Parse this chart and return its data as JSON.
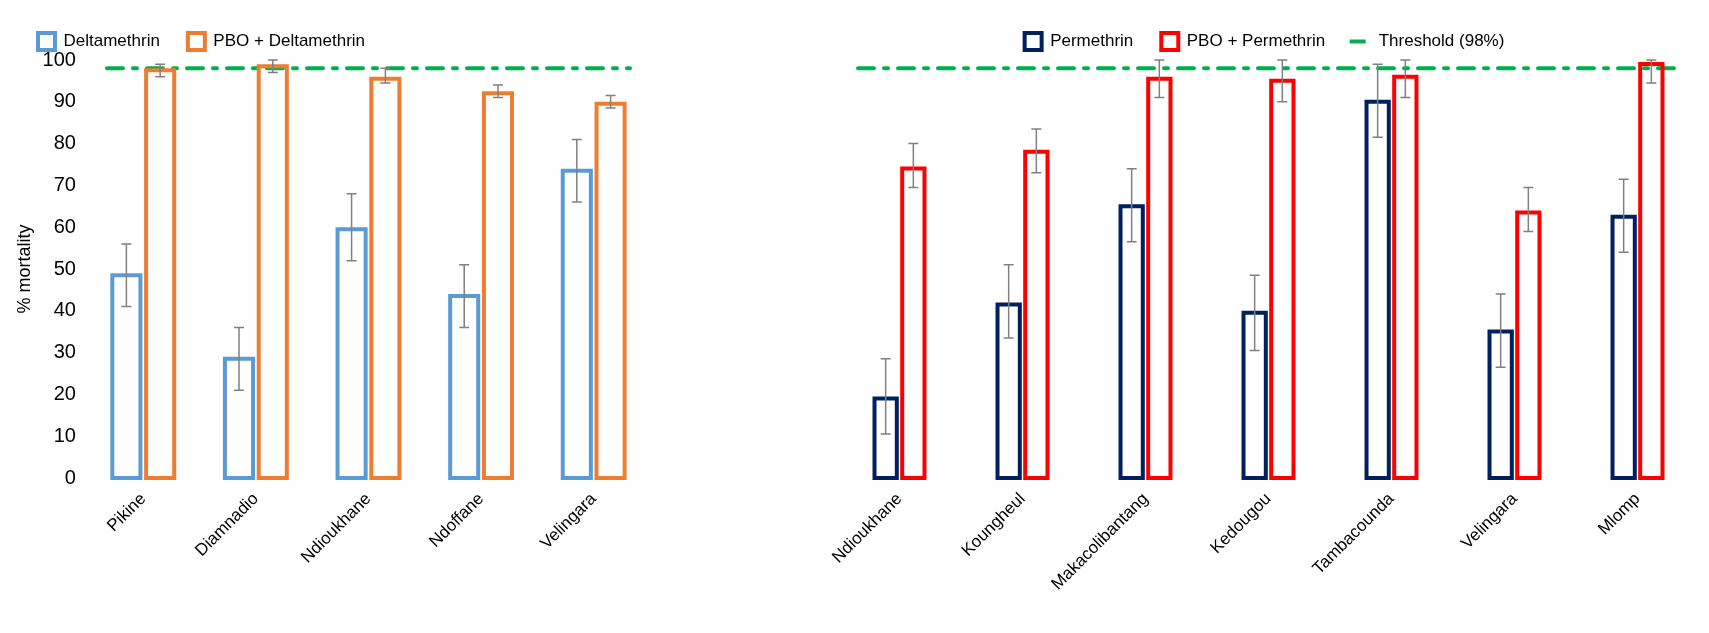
{
  "chart_data": [
    {
      "type": "bar",
      "ylabel": "% mortality",
      "categories": [
        "Pikine",
        "Diamnadio",
        "Ndioukhane",
        "Ndoffane",
        "Velingara"
      ],
      "series": [
        {
          "name": "Deltamethrin",
          "color": "#5b9bd5",
          "values": [
            49,
            29,
            60,
            44,
            74
          ],
          "errors": [
            [
              41,
              56
            ],
            [
              21,
              36
            ],
            [
              52,
              68
            ],
            [
              36,
              51
            ],
            [
              66,
              81
            ]
          ]
        },
        {
          "name": "PBO + Deltamethrin",
          "color": "#ed7d31",
          "values": [
            98,
            99,
            96,
            92.5,
            90
          ],
          "errors": [
            [
              96,
              99
            ],
            [
              97,
              100
            ],
            [
              94.5,
              98
            ],
            [
              91,
              94
            ],
            [
              88.5,
              91.5
            ]
          ]
        }
      ],
      "ylim": [
        0,
        100
      ],
      "yticks": [
        0,
        10,
        20,
        30,
        40,
        50,
        60,
        70,
        80,
        90,
        100
      ],
      "grid": false,
      "legend": "top left",
      "ref_lines": [
        {
          "axis": "y",
          "value": 98,
          "color": "#00b050",
          "line_style": "dashed"
        }
      ]
    },
    {
      "type": "bar",
      "categories": [
        "Ndioukhane",
        "Koungheul",
        "Makacolibantang",
        "Kedougou",
        "Tambacounda",
        "Velingara",
        "Mlomp"
      ],
      "series": [
        {
          "name": "Permethrin",
          "color": "#002060",
          "values": [
            19.5,
            42,
            65.5,
            40,
            90.5,
            35.5,
            63
          ],
          "errors": [
            [
              10.5,
              28.5
            ],
            [
              33.5,
              51
            ],
            [
              56.5,
              74
            ],
            [
              30.5,
              48.5
            ],
            [
              81.5,
              99
            ],
            [
              26.5,
              44
            ],
            [
              54,
              71.5
            ]
          ]
        },
        {
          "name": "PBO + Permethrin",
          "color": "#ff0000",
          "values": [
            74.5,
            78.5,
            96,
            95.5,
            96.5,
            64,
            99.5
          ],
          "errors": [
            [
              69.5,
              80
            ],
            [
              73,
              83.5
            ],
            [
              91,
              100
            ],
            [
              90,
              100
            ],
            [
              91,
              100
            ],
            [
              59,
              69.5
            ],
            [
              94.5,
              100
            ]
          ]
        }
      ],
      "ylim": [
        0,
        100
      ],
      "tick_labels": "x",
      "grid": false,
      "legend": "top",
      "ref_lines": [
        {
          "axis": "y",
          "value": 98,
          "label": "Threshold (98%)",
          "color": "#00b050",
          "line_style": "dashed"
        }
      ]
    }
  ]
}
